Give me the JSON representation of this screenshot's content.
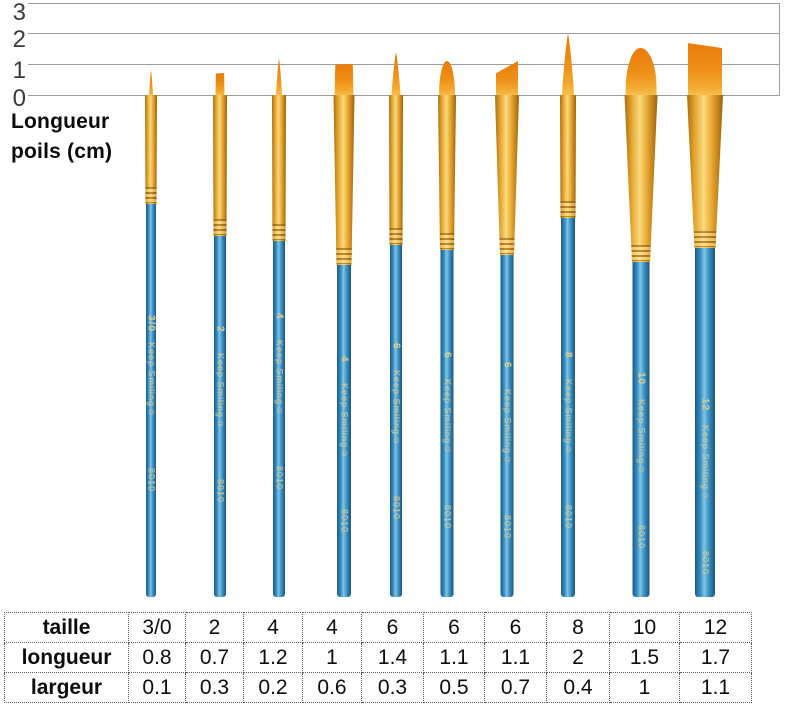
{
  "scale": {
    "ticks": [
      "3",
      "2",
      "1",
      "0"
    ],
    "unit_label_line1": "Longueur",
    "unit_label_line2": "poils (cm)"
  },
  "brushes": [
    {
      "size": "3/0",
      "brand": "Keep Smiling☺",
      "model": "8010",
      "shape": "round",
      "longueur_cm": 0.8,
      "largeur_cm": 0.1
    },
    {
      "size": "2",
      "brand": "Keep Smiling☺",
      "model": "8010",
      "shape": "flat",
      "longueur_cm": 0.7,
      "largeur_cm": 0.3
    },
    {
      "size": "4",
      "brand": "Keep Smiling☺",
      "model": "8010",
      "shape": "round",
      "longueur_cm": 1.2,
      "largeur_cm": 0.2
    },
    {
      "size": "4",
      "brand": "Keep Smiling☺",
      "model": "8010",
      "shape": "flat",
      "longueur_cm": 1,
      "largeur_cm": 0.6
    },
    {
      "size": "6",
      "brand": "Keep Smiling☺",
      "model": "8010",
      "shape": "round",
      "longueur_cm": 1.4,
      "largeur_cm": 0.3
    },
    {
      "size": "6",
      "brand": "Keep Smiling☺",
      "model": "8010",
      "shape": "filbert",
      "longueur_cm": 1.1,
      "largeur_cm": 0.5
    },
    {
      "size": "6",
      "brand": "Keep Smiling☺",
      "model": "8010",
      "shape": "angle-right",
      "longueur_cm": 1.1,
      "largeur_cm": 0.7
    },
    {
      "size": "8",
      "brand": "Keep Smiling☺",
      "model": "8010",
      "shape": "round",
      "longueur_cm": 2,
      "largeur_cm": 0.4
    },
    {
      "size": "10",
      "brand": "Keep Smiling☺",
      "model": "8010",
      "shape": "dome",
      "longueur_cm": 1.5,
      "largeur_cm": 1
    },
    {
      "size": "12",
      "brand": "Keep Smiling☺",
      "model": "8010",
      "shape": "flat-wide",
      "longueur_cm": 1.7,
      "largeur_cm": 1.1
    }
  ],
  "table": {
    "rows": [
      {
        "label": "taille",
        "values": [
          "3/0",
          "2",
          "4",
          "4",
          "6",
          "6",
          "6",
          "8",
          "10",
          "12"
        ]
      },
      {
        "label": "longueur",
        "values": [
          "0.8",
          "0.7",
          "1.2",
          "1",
          "1.4",
          "1.1",
          "1.1",
          "2",
          "1.5",
          "1.7"
        ]
      },
      {
        "label": "largeur",
        "values": [
          "0.1",
          "0.3",
          "0.2",
          "0.6",
          "0.3",
          "0.5",
          "0.7",
          "0.4",
          "1",
          "1.1"
        ]
      }
    ]
  },
  "chart_data": {
    "type": "table",
    "title": "Longueur poils (cm)",
    "ylabel": "Longueur poils (cm)",
    "yticks": [
      3,
      2,
      1,
      0
    ],
    "ylim": [
      0,
      3
    ],
    "grid": true,
    "categories": [
      "3/0",
      "2",
      "4",
      "4",
      "6",
      "6",
      "6",
      "8",
      "10",
      "12"
    ],
    "series": [
      {
        "name": "longueur",
        "values": [
          0.8,
          0.7,
          1.2,
          1,
          1.4,
          1.1,
          1.1,
          2,
          1.5,
          1.7
        ]
      },
      {
        "name": "largeur",
        "values": [
          0.1,
          0.3,
          0.2,
          0.6,
          0.3,
          0.5,
          0.7,
          0.4,
          1,
          1.1
        ]
      }
    ]
  }
}
